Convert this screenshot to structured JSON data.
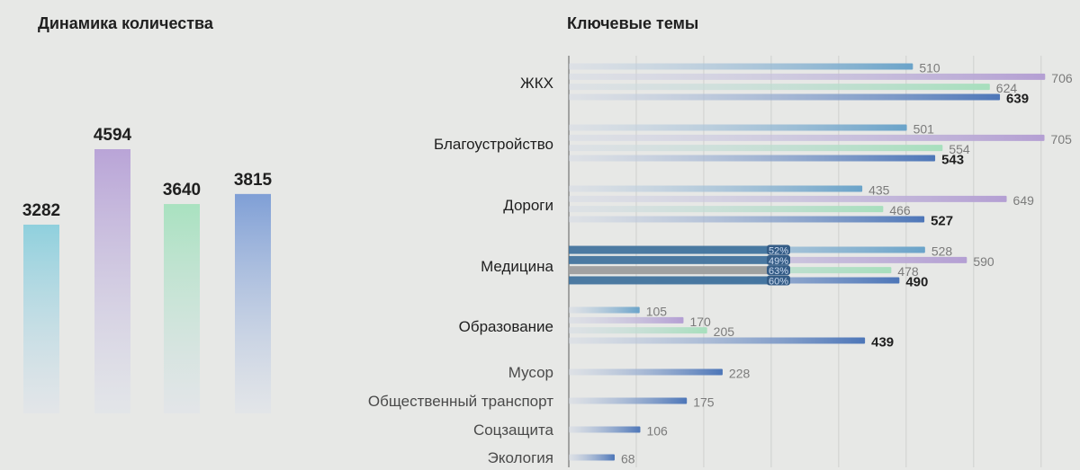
{
  "left": {
    "title": "Динамика количества",
    "chart_data": {
      "type": "bar",
      "categories": [
        "",
        "",
        "",
        ""
      ],
      "values": [
        3282,
        4594,
        3640,
        3815
      ],
      "colors": [
        "#8fd0dd",
        "#b9a4d7",
        "#a9e2c0",
        "#7f9fd6"
      ],
      "bold_index": 3,
      "ylim": [
        0,
        4594
      ]
    }
  },
  "right": {
    "title": "Ключевые темы",
    "chart_data": {
      "type": "bar",
      "orientation": "horizontal",
      "grid": true,
      "xlim": [
        0,
        720
      ],
      "series_colors": [
        "#6aa3c9",
        "#b49fd3",
        "#a7dfbd",
        "#4d76b8"
      ],
      "groups": [
        {
          "label": "ЖКХ",
          "values": [
            510,
            706,
            624,
            639
          ],
          "bold": true
        },
        {
          "label": "Благоустройство",
          "values": [
            501,
            705,
            554,
            543
          ],
          "bold": true
        },
        {
          "label": "Дороги",
          "values": [
            435,
            649,
            466,
            527
          ],
          "bold": true
        },
        {
          "label": "Медицина",
          "values": [
            528,
            590,
            478,
            490
          ],
          "bold": true,
          "pct": [
            "52%",
            "49%",
            "63%",
            "60%"
          ]
        },
        {
          "label": "Образование",
          "values": [
            105,
            170,
            205,
            439
          ],
          "bold": true
        },
        {
          "label": "Мусор",
          "values": [
            228
          ],
          "bold": false
        },
        {
          "label": "Общественный транспорт",
          "values": [
            175
          ],
          "bold": false
        },
        {
          "label": "Соцзащита",
          "values": [
            106
          ],
          "bold": false
        },
        {
          "label": "Экология",
          "values": [
            68
          ],
          "bold": false
        }
      ]
    }
  }
}
